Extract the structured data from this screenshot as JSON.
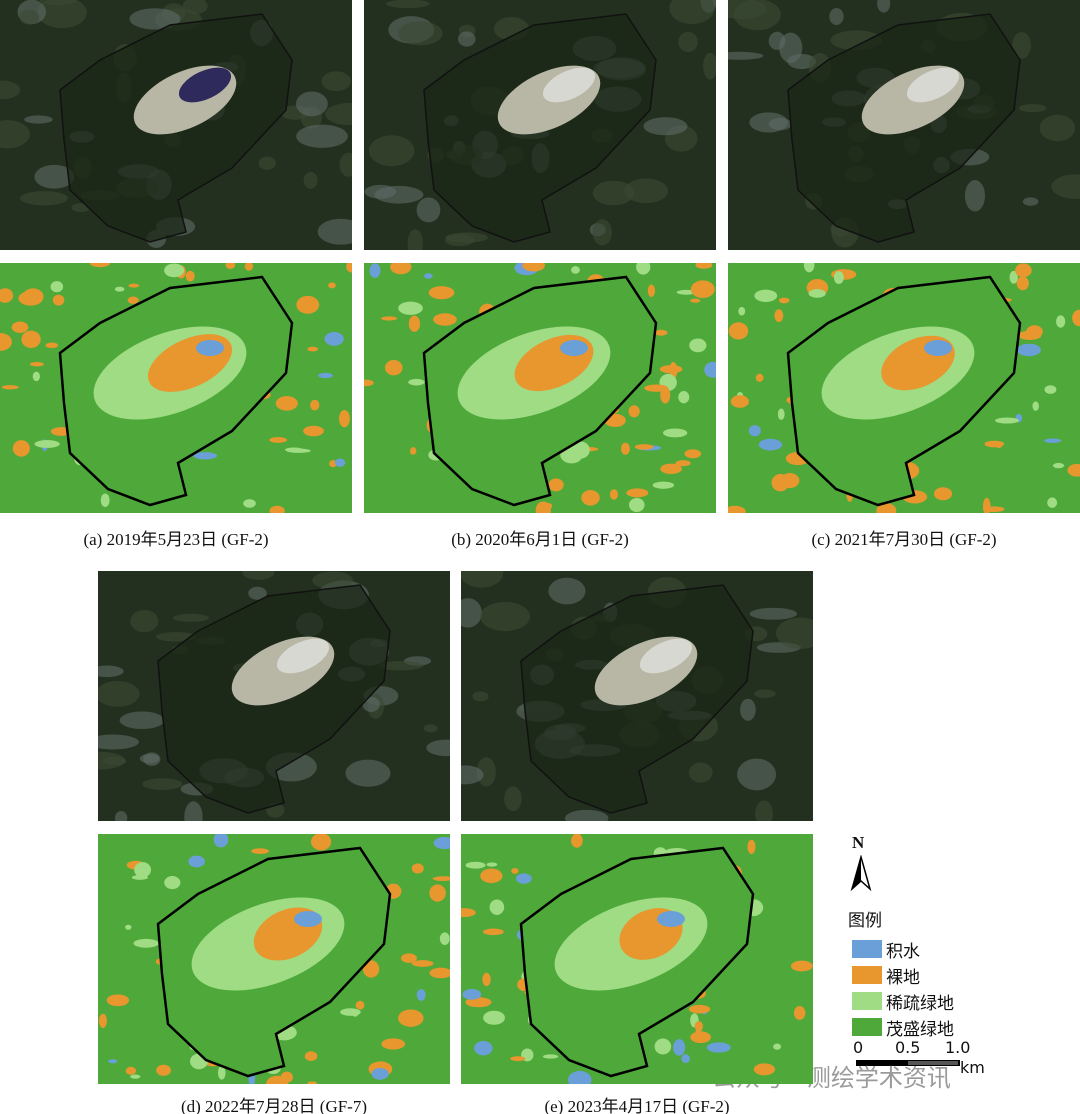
{
  "panels": [
    {
      "caption": "(a) 2019年5月23日 (GF-2)"
    },
    {
      "caption": "(b) 2020年6月1日 (GF-2)"
    },
    {
      "caption": "(c) 2021年7月30日 (GF-2)"
    },
    {
      "caption": "(d) 2022年7月28日 (GF-7)"
    },
    {
      "caption": "(e) 2023年4月17日 (GF-2)"
    }
  ],
  "north": "N",
  "legend": {
    "title": "图例",
    "items": [
      {
        "label": "积水",
        "color": "#6a9fd8"
      },
      {
        "label": "裸地",
        "color": "#e8962e"
      },
      {
        "label": "稀疏绿地",
        "color": "#9fdc84"
      },
      {
        "label": "茂盛绿地",
        "color": "#4ea93a"
      }
    ]
  },
  "scale_bar": {
    "ticks": [
      "0",
      "0.5",
      "1.0"
    ],
    "unit": "km"
  },
  "watermark": "公众号 · 测绘学术资讯"
}
